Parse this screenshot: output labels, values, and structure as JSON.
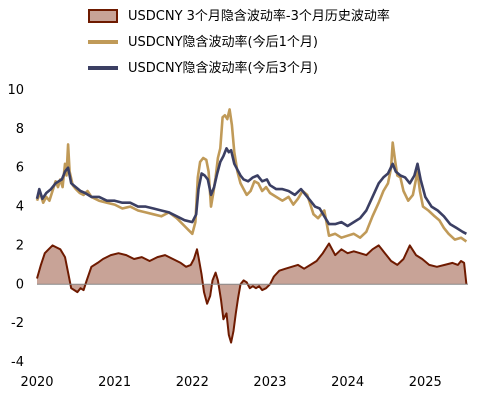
{
  "chart_data": {
    "type": "line",
    "title": "",
    "xlabel": "",
    "ylabel": "",
    "xlim": [
      2020.0,
      2025.55
    ],
    "ylim": [
      -4,
      10
    ],
    "yticks": [
      -4,
      -2,
      0,
      2,
      4,
      6,
      8,
      10
    ],
    "xticks": [
      2020,
      2021,
      2022,
      2023,
      2024,
      2025
    ],
    "grid": false,
    "legend_position": "top",
    "series": [
      {
        "name": "USDCNY 3个月隐含波动率-3个月历史波动率",
        "kind": "area",
        "color": "#6e1a00",
        "fill": "#c8a397",
        "points": [
          [
            2020.0,
            0.3
          ],
          [
            2020.05,
            1.0
          ],
          [
            2020.1,
            1.6
          ],
          [
            2020.15,
            1.8
          ],
          [
            2020.2,
            2.0
          ],
          [
            2020.25,
            1.9
          ],
          [
            2020.3,
            1.8
          ],
          [
            2020.36,
            1.4
          ],
          [
            2020.4,
            0.6
          ],
          [
            2020.44,
            -0.2
          ],
          [
            2020.48,
            -0.3
          ],
          [
            2020.52,
            -0.4
          ],
          [
            2020.56,
            -0.2
          ],
          [
            2020.6,
            -0.3
          ],
          [
            2020.64,
            0.2
          ],
          [
            2020.7,
            0.9
          ],
          [
            2020.78,
            1.1
          ],
          [
            2020.85,
            1.3
          ],
          [
            2020.95,
            1.5
          ],
          [
            2021.05,
            1.6
          ],
          [
            2021.15,
            1.5
          ],
          [
            2021.25,
            1.3
          ],
          [
            2021.35,
            1.4
          ],
          [
            2021.45,
            1.2
          ],
          [
            2021.55,
            1.4
          ],
          [
            2021.65,
            1.5
          ],
          [
            2021.75,
            1.3
          ],
          [
            2021.85,
            1.1
          ],
          [
            2021.92,
            0.9
          ],
          [
            2021.98,
            1.0
          ],
          [
            2022.02,
            1.3
          ],
          [
            2022.06,
            1.8
          ],
          [
            2022.08,
            1.4
          ],
          [
            2022.12,
            0.5
          ],
          [
            2022.15,
            -0.4
          ],
          [
            2022.19,
            -1.0
          ],
          [
            2022.23,
            -0.6
          ],
          [
            2022.26,
            0.2
          ],
          [
            2022.3,
            0.6
          ],
          [
            2022.33,
            0.2
          ],
          [
            2022.37,
            -0.8
          ],
          [
            2022.4,
            -1.8
          ],
          [
            2022.44,
            -1.5
          ],
          [
            2022.47,
            -2.6
          ],
          [
            2022.5,
            -3.0
          ],
          [
            2022.53,
            -2.4
          ],
          [
            2022.56,
            -1.5
          ],
          [
            2022.59,
            -0.7
          ],
          [
            2022.62,
            0.0
          ],
          [
            2022.66,
            0.2
          ],
          [
            2022.7,
            0.1
          ],
          [
            2022.74,
            -0.2
          ],
          [
            2022.78,
            -0.1
          ],
          [
            2022.82,
            -0.2
          ],
          [
            2022.86,
            -0.1
          ],
          [
            2022.9,
            -0.3
          ],
          [
            2022.95,
            -0.2
          ],
          [
            2023.0,
            0.0
          ],
          [
            2023.05,
            0.4
          ],
          [
            2023.12,
            0.7
          ],
          [
            2023.2,
            0.8
          ],
          [
            2023.28,
            0.9
          ],
          [
            2023.36,
            1.0
          ],
          [
            2023.44,
            0.8
          ],
          [
            2023.52,
            1.0
          ],
          [
            2023.6,
            1.2
          ],
          [
            2023.68,
            1.6
          ],
          [
            2023.76,
            2.1
          ],
          [
            2023.84,
            1.5
          ],
          [
            2023.92,
            1.8
          ],
          [
            2024.0,
            1.6
          ],
          [
            2024.08,
            1.7
          ],
          [
            2024.16,
            1.6
          ],
          [
            2024.24,
            1.5
          ],
          [
            2024.32,
            1.8
          ],
          [
            2024.4,
            2.0
          ],
          [
            2024.48,
            1.6
          ],
          [
            2024.56,
            1.2
          ],
          [
            2024.64,
            1.0
          ],
          [
            2024.72,
            1.3
          ],
          [
            2024.8,
            2.0
          ],
          [
            2024.88,
            1.5
          ],
          [
            2024.96,
            1.3
          ],
          [
            2025.05,
            1.0
          ],
          [
            2025.15,
            0.9
          ],
          [
            2025.25,
            1.0
          ],
          [
            2025.35,
            1.1
          ],
          [
            2025.42,
            1.0
          ],
          [
            2025.46,
            1.2
          ],
          [
            2025.5,
            1.1
          ],
          [
            2025.53,
            0.0
          ]
        ]
      },
      {
        "name": "USDCNY隐含波动率(今后1个月)",
        "kind": "line",
        "color": "#c09a58",
        "points": [
          [
            2020.0,
            4.3
          ],
          [
            2020.04,
            4.7
          ],
          [
            2020.08,
            4.2
          ],
          [
            2020.12,
            4.5
          ],
          [
            2020.16,
            4.3
          ],
          [
            2020.2,
            4.8
          ],
          [
            2020.24,
            5.3
          ],
          [
            2020.27,
            5.0
          ],
          [
            2020.3,
            5.4
          ],
          [
            2020.33,
            5.0
          ],
          [
            2020.36,
            6.2
          ],
          [
            2020.38,
            5.6
          ],
          [
            2020.4,
            7.2
          ],
          [
            2020.42,
            5.8
          ],
          [
            2020.46,
            5.1
          ],
          [
            2020.5,
            4.9
          ],
          [
            2020.55,
            4.7
          ],
          [
            2020.6,
            4.6
          ],
          [
            2020.65,
            4.8
          ],
          [
            2020.7,
            4.5
          ],
          [
            2020.8,
            4.3
          ],
          [
            2020.9,
            4.2
          ],
          [
            2021.0,
            4.1
          ],
          [
            2021.1,
            3.9
          ],
          [
            2021.2,
            4.0
          ],
          [
            2021.3,
            3.8
          ],
          [
            2021.4,
            3.7
          ],
          [
            2021.5,
            3.6
          ],
          [
            2021.6,
            3.5
          ],
          [
            2021.7,
            3.7
          ],
          [
            2021.8,
            3.4
          ],
          [
            2021.9,
            3.0
          ],
          [
            2021.95,
            2.8
          ],
          [
            2022.0,
            2.6
          ],
          [
            2022.04,
            3.2
          ],
          [
            2022.07,
            5.5
          ],
          [
            2022.1,
            6.3
          ],
          [
            2022.14,
            6.5
          ],
          [
            2022.18,
            6.4
          ],
          [
            2022.21,
            5.8
          ],
          [
            2022.24,
            4.0
          ],
          [
            2022.27,
            4.7
          ],
          [
            2022.3,
            5.5
          ],
          [
            2022.33,
            6.5
          ],
          [
            2022.36,
            7.0
          ],
          [
            2022.39,
            8.6
          ],
          [
            2022.42,
            8.7
          ],
          [
            2022.45,
            8.5
          ],
          [
            2022.48,
            9.0
          ],
          [
            2022.51,
            8.2
          ],
          [
            2022.54,
            6.8
          ],
          [
            2022.58,
            5.8
          ],
          [
            2022.62,
            5.2
          ],
          [
            2022.66,
            4.9
          ],
          [
            2022.7,
            4.6
          ],
          [
            2022.75,
            4.8
          ],
          [
            2022.8,
            5.3
          ],
          [
            2022.85,
            5.2
          ],
          [
            2022.9,
            4.8
          ],
          [
            2022.95,
            5.0
          ],
          [
            2023.0,
            4.7
          ],
          [
            2023.08,
            4.5
          ],
          [
            2023.16,
            4.3
          ],
          [
            2023.24,
            4.5
          ],
          [
            2023.3,
            4.1
          ],
          [
            2023.36,
            4.4
          ],
          [
            2023.42,
            4.8
          ],
          [
            2023.48,
            4.6
          ],
          [
            2023.52,
            4.1
          ],
          [
            2023.56,
            3.6
          ],
          [
            2023.62,
            3.4
          ],
          [
            2023.7,
            3.8
          ],
          [
            2023.76,
            2.5
          ],
          [
            2023.84,
            2.6
          ],
          [
            2023.92,
            2.4
          ],
          [
            2024.0,
            2.5
          ],
          [
            2024.08,
            2.6
          ],
          [
            2024.16,
            2.4
          ],
          [
            2024.24,
            2.7
          ],
          [
            2024.32,
            3.5
          ],
          [
            2024.4,
            4.2
          ],
          [
            2024.46,
            4.8
          ],
          [
            2024.52,
            5.2
          ],
          [
            2024.56,
            6.0
          ],
          [
            2024.58,
            7.3
          ],
          [
            2024.61,
            6.4
          ],
          [
            2024.64,
            5.6
          ],
          [
            2024.68,
            5.5
          ],
          [
            2024.72,
            4.8
          ],
          [
            2024.78,
            4.3
          ],
          [
            2024.84,
            4.6
          ],
          [
            2024.9,
            5.8
          ],
          [
            2024.93,
            4.8
          ],
          [
            2024.97,
            4.0
          ],
          [
            2025.04,
            3.8
          ],
          [
            2025.12,
            3.5
          ],
          [
            2025.18,
            3.3
          ],
          [
            2025.24,
            2.9
          ],
          [
            2025.3,
            2.6
          ],
          [
            2025.38,
            2.3
          ],
          [
            2025.46,
            2.4
          ],
          [
            2025.53,
            2.2
          ]
        ]
      },
      {
        "name": "USDCNY隐含波动率(今后3个月)",
        "kind": "line",
        "color": "#3b3f63",
        "points": [
          [
            2020.0,
            4.4
          ],
          [
            2020.03,
            4.9
          ],
          [
            2020.07,
            4.4
          ],
          [
            2020.12,
            4.7
          ],
          [
            2020.18,
            4.9
          ],
          [
            2020.24,
            5.2
          ],
          [
            2020.28,
            5.3
          ],
          [
            2020.32,
            5.4
          ],
          [
            2020.36,
            5.8
          ],
          [
            2020.4,
            6.0
          ],
          [
            2020.44,
            5.2
          ],
          [
            2020.5,
            5.0
          ],
          [
            2020.56,
            4.8
          ],
          [
            2020.62,
            4.7
          ],
          [
            2020.7,
            4.5
          ],
          [
            2020.8,
            4.5
          ],
          [
            2020.9,
            4.3
          ],
          [
            2021.0,
            4.3
          ],
          [
            2021.1,
            4.2
          ],
          [
            2021.2,
            4.2
          ],
          [
            2021.3,
            4.0
          ],
          [
            2021.4,
            4.0
          ],
          [
            2021.5,
            3.9
          ],
          [
            2021.6,
            3.8
          ],
          [
            2021.7,
            3.7
          ],
          [
            2021.8,
            3.5
          ],
          [
            2021.9,
            3.3
          ],
          [
            2022.0,
            3.2
          ],
          [
            2022.05,
            3.6
          ],
          [
            2022.08,
            4.9
          ],
          [
            2022.12,
            5.7
          ],
          [
            2022.16,
            5.6
          ],
          [
            2022.2,
            5.4
          ],
          [
            2022.24,
            4.6
          ],
          [
            2022.28,
            5.0
          ],
          [
            2022.32,
            5.7
          ],
          [
            2022.36,
            6.3
          ],
          [
            2022.4,
            6.6
          ],
          [
            2022.44,
            7.0
          ],
          [
            2022.47,
            6.8
          ],
          [
            2022.5,
            6.9
          ],
          [
            2022.54,
            6.2
          ],
          [
            2022.58,
            5.9
          ],
          [
            2022.62,
            5.6
          ],
          [
            2022.66,
            5.4
          ],
          [
            2022.72,
            5.3
          ],
          [
            2022.78,
            5.5
          ],
          [
            2022.84,
            5.6
          ],
          [
            2022.9,
            5.3
          ],
          [
            2022.96,
            5.4
          ],
          [
            2023.0,
            5.1
          ],
          [
            2023.08,
            4.9
          ],
          [
            2023.16,
            4.9
          ],
          [
            2023.24,
            4.8
          ],
          [
            2023.32,
            4.6
          ],
          [
            2023.4,
            4.9
          ],
          [
            2023.46,
            4.6
          ],
          [
            2023.52,
            4.3
          ],
          [
            2023.58,
            4.0
          ],
          [
            2023.64,
            3.9
          ],
          [
            2023.7,
            3.5
          ],
          [
            2023.76,
            3.1
          ],
          [
            2023.84,
            3.1
          ],
          [
            2023.92,
            3.2
          ],
          [
            2024.0,
            3.0
          ],
          [
            2024.08,
            3.2
          ],
          [
            2024.16,
            3.4
          ],
          [
            2024.24,
            3.8
          ],
          [
            2024.32,
            4.5
          ],
          [
            2024.4,
            5.2
          ],
          [
            2024.46,
            5.5
          ],
          [
            2024.52,
            5.7
          ],
          [
            2024.58,
            6.2
          ],
          [
            2024.62,
            5.8
          ],
          [
            2024.68,
            5.6
          ],
          [
            2024.74,
            5.5
          ],
          [
            2024.8,
            5.2
          ],
          [
            2024.86,
            5.6
          ],
          [
            2024.9,
            6.2
          ],
          [
            2024.94,
            5.4
          ],
          [
            2025.0,
            4.5
          ],
          [
            2025.08,
            4.0
          ],
          [
            2025.16,
            3.8
          ],
          [
            2025.24,
            3.5
          ],
          [
            2025.32,
            3.1
          ],
          [
            2025.4,
            2.9
          ],
          [
            2025.48,
            2.7
          ],
          [
            2025.53,
            2.6
          ]
        ]
      }
    ]
  }
}
